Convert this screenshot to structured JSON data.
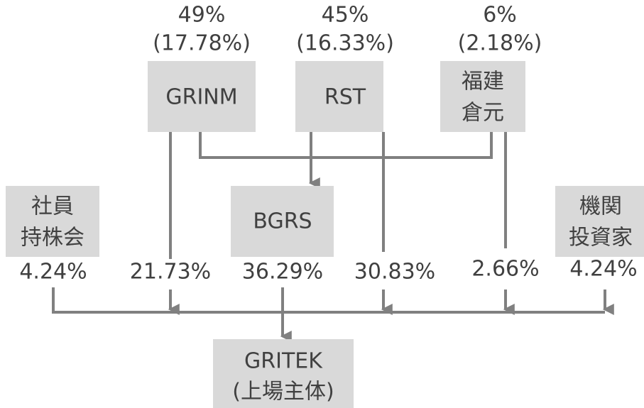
{
  "parents": [
    {
      "label": [
        "GRINM"
      ],
      "share": "49%",
      "share_total": "(17.78%)"
    },
    {
      "label": [
        "RST"
      ],
      "share": "45%",
      "share_total": "(16.33%)"
    },
    {
      "label": [
        "福建",
        "倉元"
      ],
      "share": "6%",
      "share_total": "(2.18%)"
    }
  ],
  "holders": [
    {
      "label": [
        "社員",
        "持株会"
      ],
      "stake": "4.24%"
    },
    {
      "label": [],
      "stake": "21.73%"
    },
    {
      "label": [
        "BGRS"
      ],
      "stake": "36.29%"
    },
    {
      "label": [],
      "stake": "30.83%"
    },
    {
      "label": [],
      "stake": "2.66%"
    },
    {
      "label": [
        "機関",
        "投資家"
      ],
      "stake": "4.24%"
    }
  ],
  "target": {
    "label": [
      "GRITEK",
      "(上場主体)"
    ]
  }
}
